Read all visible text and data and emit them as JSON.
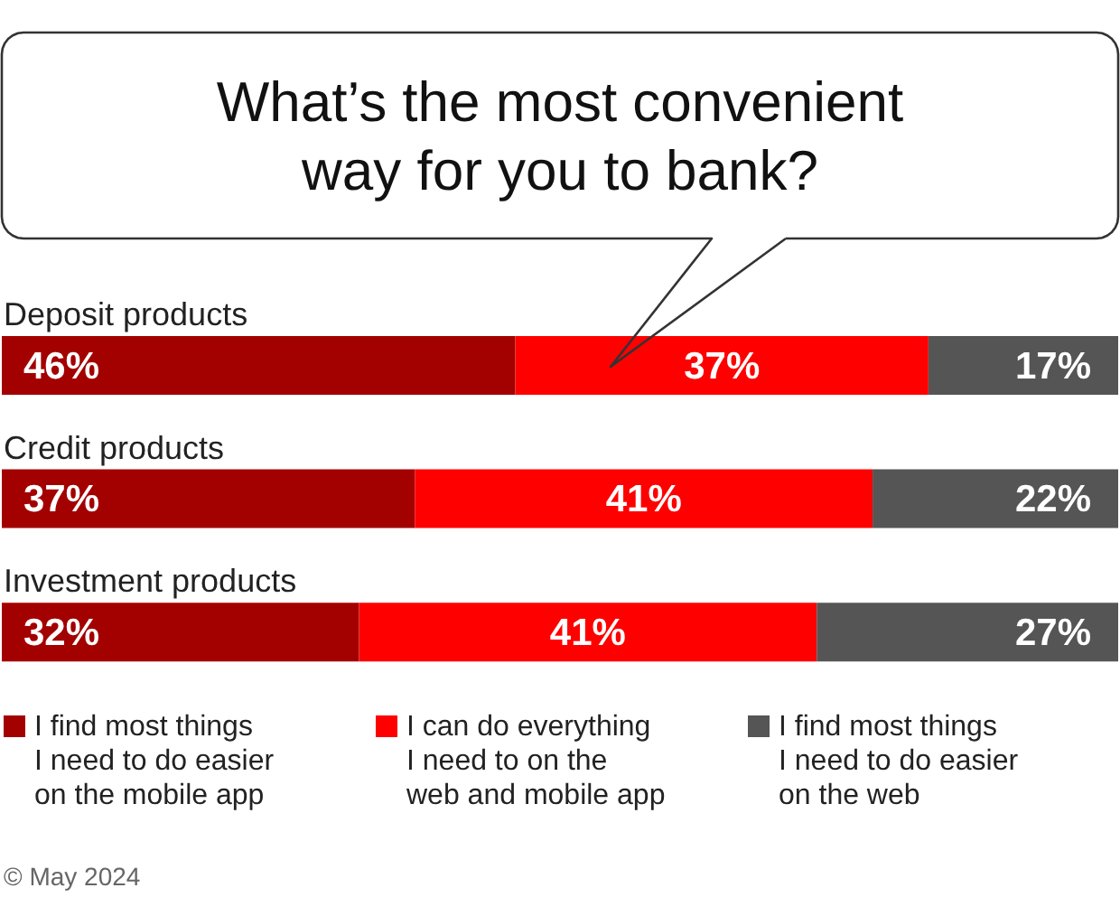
{
  "chart_data": {
    "type": "bar",
    "orientation": "horizontal",
    "stacked": true,
    "title": "What’s the most convenient way for you to bank?",
    "categories": [
      "Deposit products",
      "Credit products",
      "Investment products"
    ],
    "series": [
      {
        "name": "I find most things I need to do easier on the mobile app",
        "color": "#a30000",
        "values": [
          46,
          37,
          32
        ],
        "value_labels": [
          "46%",
          "37%",
          "32%"
        ]
      },
      {
        "name": "I can do everything I need to on the web and mobile app",
        "color": "#ff0000",
        "values": [
          37,
          41,
          41
        ],
        "value_labels": [
          "37%",
          "41%",
          "41%"
        ]
      },
      {
        "name": "I find most things I need to do easier on the web",
        "color": "#555555",
        "values": [
          17,
          22,
          27
        ],
        "value_labels": [
          "17%",
          "22%",
          "27%"
        ]
      }
    ],
    "legend": "bottom",
    "annotations": [
      "© May 2024"
    ]
  }
}
